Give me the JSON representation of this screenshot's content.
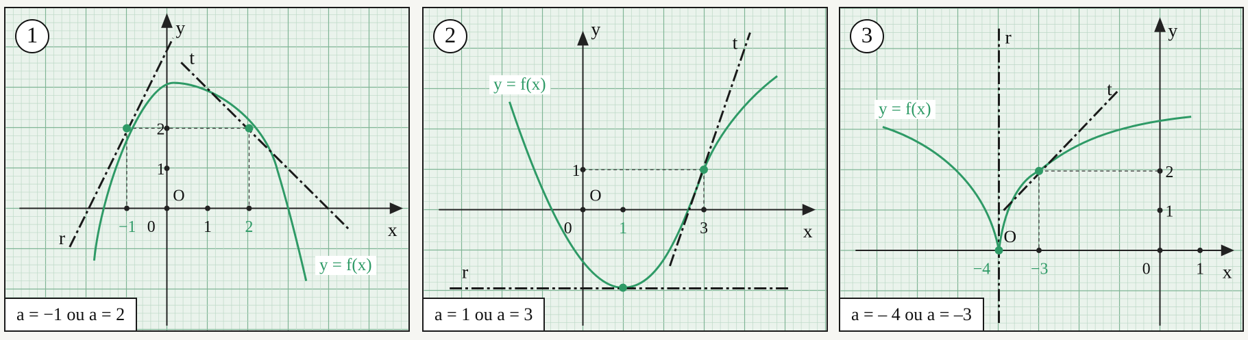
{
  "colors": {
    "grid_minor": "#bcd8c6",
    "grid_major": "#7fb595",
    "curve": "#2e9a66",
    "axis": "#222222",
    "tangent": "#1a1a1a"
  },
  "panels": [
    {
      "number": "1",
      "caption": "a = −1 ou a = 2",
      "x_axis_label": "x",
      "y_axis_label": "y",
      "origin_label": "O",
      "curve_label": "y = f(x)",
      "tangent_labels": [
        "r",
        "t"
      ],
      "x_ticks": [
        "−1",
        "0",
        "1",
        "2"
      ],
      "y_ticks": [
        "1",
        "2"
      ],
      "points": [
        {
          "x": -1,
          "y": 2
        },
        {
          "x": 2,
          "y": 2
        }
      ]
    },
    {
      "number": "2",
      "caption": "a = 1 ou a = 3",
      "x_axis_label": "x",
      "y_axis_label": "y",
      "origin_label": "O",
      "curve_label": "y = f(x)",
      "tangent_labels": [
        "r",
        "t"
      ],
      "x_ticks": [
        "0",
        "1",
        "3"
      ],
      "y_ticks": [
        "1"
      ],
      "points": [
        {
          "x": 1,
          "y": -2
        },
        {
          "x": 3,
          "y": 1
        }
      ]
    },
    {
      "number": "3",
      "caption": "a = – 4 ou a = –3",
      "x_axis_label": "x",
      "y_axis_label": "y",
      "origin_label": "O",
      "curve_label": "y = f(x)",
      "tangent_labels": [
        "r",
        "t"
      ],
      "x_ticks": [
        "−4",
        "−3",
        "0",
        "1"
      ],
      "y_ticks": [
        "1",
        "2"
      ],
      "points": [
        {
          "x": -4,
          "y": 0
        },
        {
          "x": -3,
          "y": 2
        }
      ]
    }
  ]
}
